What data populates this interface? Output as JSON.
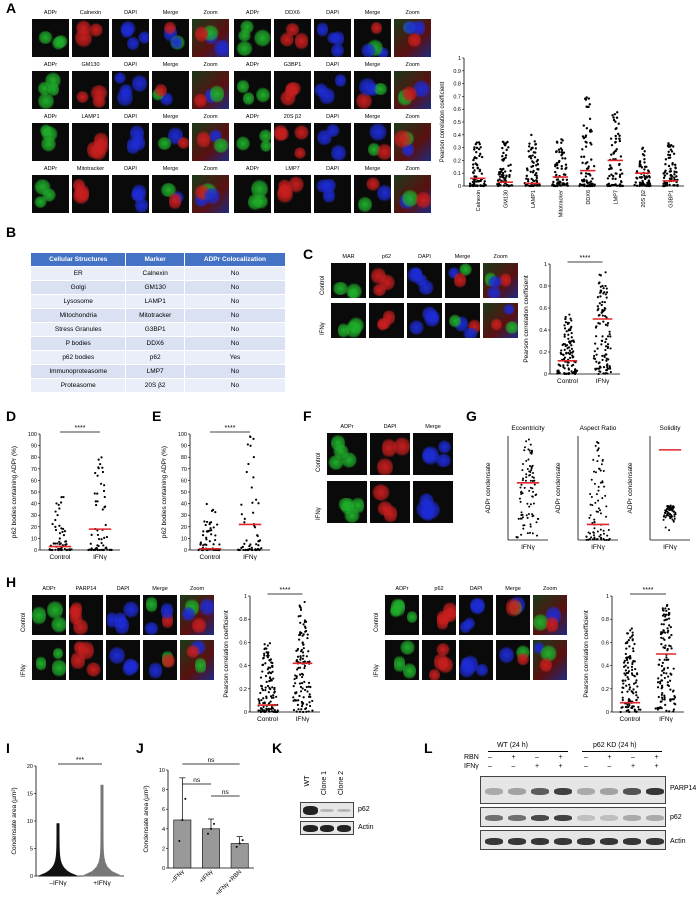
{
  "panels": {
    "A": "A",
    "B": "B",
    "C": "C",
    "D": "D",
    "E": "E",
    "F": "F",
    "G": "G",
    "H": "H",
    "I": "I",
    "J": "J",
    "K": "K",
    "L": "L"
  },
  "A": {
    "left_rows": [
      [
        "ADPr",
        "Calnexin",
        "DAPI",
        "Merge",
        "Zoom"
      ],
      [
        "ADPr",
        "GM130",
        "DAPI",
        "Merge",
        "Zoom"
      ],
      [
        "ADPr",
        "LAMP1",
        "DAPI",
        "Merge",
        "Zoom"
      ],
      [
        "ADPr",
        "Mitotracker",
        "DAPI",
        "Merge",
        "Zoom"
      ]
    ],
    "right_rows": [
      [
        "ADPr",
        "DDX6",
        "DAPI",
        "Merge",
        "Zoom"
      ],
      [
        "ADPr",
        "G3BP1",
        "DAPI",
        "Merge",
        "Zoom"
      ],
      [
        "ADPr",
        "20S β2",
        "DAPI",
        "Merge",
        "Zoom"
      ],
      [
        "ADPr",
        "LMP7",
        "DAPI",
        "Merge",
        "Zoom"
      ]
    ],
    "colors": {
      "green": "#1fae2a",
      "red": "#c81e1e",
      "blue": "#1d2bd6"
    }
  },
  "B": {
    "headers": [
      "Cellular Structures",
      "Marker",
      "ADPr Colocalization"
    ],
    "rows": [
      [
        "ER",
        "Calnexin",
        "No"
      ],
      [
        "Golgi",
        "GM130",
        "No"
      ],
      [
        "Lysosome",
        "LAMP1",
        "No"
      ],
      [
        "Mitochondria",
        "Mitotracker",
        "No"
      ],
      [
        "Stress Granules",
        "G3BP1",
        "No"
      ],
      [
        "P bodies",
        "DDX6",
        "No"
      ],
      [
        "p62 bodies",
        "p62",
        "Yes"
      ],
      [
        "Immunoproteasome",
        "LMP7",
        "No"
      ],
      [
        "Proteasome",
        "20S β2",
        "No"
      ]
    ]
  },
  "C": {
    "headers": [
      "MAR",
      "p62",
      "DAPI",
      "Merge",
      "Zoom"
    ],
    "rows": [
      "Control",
      "IFNγ"
    ]
  },
  "F": {
    "headers": [
      "ADPr",
      "DAPI",
      "Merge"
    ],
    "rows": [
      "Control",
      "IFNγ"
    ]
  },
  "H": {
    "left_headers": [
      "ADPr",
      "PARP14",
      "DAPI",
      "Merge",
      "Zoom"
    ],
    "right_headers": [
      "ADPr",
      "p62",
      "DAPI",
      "Merge",
      "Zoom"
    ],
    "rows": [
      "Control",
      "IFNγ"
    ]
  },
  "K": {
    "lanes": [
      "WT",
      "Clone 1",
      "Clone 2"
    ],
    "bands": [
      "p62",
      "Actin"
    ]
  },
  "L": {
    "groups": [
      "WT (24 h)",
      "p62 KD (24 h)"
    ],
    "row_labels": [
      "RBN",
      "IFNγ"
    ],
    "rbn": [
      "–",
      "+",
      "–",
      "+",
      "–",
      "+",
      "–",
      "+"
    ],
    "ifn": [
      "–",
      "–",
      "+",
      "+",
      "–",
      "–",
      "+",
      "+"
    ],
    "bands": [
      "PARP14",
      "p62",
      "Actin"
    ]
  },
  "chart_data": [
    {
      "id": "A",
      "type": "scatter",
      "ylabel": "Pearson correlation coefficient",
      "ylim": [
        0,
        1.0
      ],
      "yticks": [
        0,
        0.1,
        0.2,
        0.3,
        0.4,
        0.5,
        0.6,
        0.7,
        0.8,
        0.9,
        1.0
      ],
      "categories": [
        "Calnexin",
        "GM130",
        "LAMP1",
        "Mitotracker",
        "DDX6",
        "LMP7",
        "20S β2",
        "G3BP1"
      ],
      "medians": [
        0.06,
        0.03,
        0.02,
        0.07,
        0.12,
        0.2,
        0.1,
        0.04
      ],
      "spreads": [
        0.35,
        0.35,
        0.4,
        0.4,
        0.7,
        0.6,
        0.3,
        0.35
      ]
    },
    {
      "id": "C",
      "type": "scatter",
      "ylabel": "Pearson correlation coefficient",
      "ylim": [
        0,
        1.0
      ],
      "yticks": [
        0,
        0.2,
        0.4,
        0.6,
        0.8,
        1.0
      ],
      "categories": [
        "Control",
        "IFNγ"
      ],
      "medians": [
        0.12,
        0.5
      ],
      "spreads": [
        0.55,
        0.95
      ],
      "sig": "****"
    },
    {
      "id": "D",
      "type": "scatter",
      "ylabel": "p62 bodies containing ADPr (%)",
      "ylim": [
        0,
        100
      ],
      "yticks": [
        0,
        10,
        20,
        30,
        40,
        50,
        60,
        70,
        80,
        90,
        100
      ],
      "categories": [
        "Control",
        "IFNγ"
      ],
      "medians": [
        3,
        18
      ],
      "spreads": [
        50,
        80
      ],
      "sig": "****"
    },
    {
      "id": "E",
      "type": "scatter",
      "ylabel": "p62 bodies containing ADPr (%)",
      "ylim": [
        0,
        100
      ],
      "yticks": [
        0,
        10,
        20,
        30,
        40,
        50,
        60,
        70,
        80,
        90,
        100
      ],
      "categories": [
        "Control",
        "IFNγ"
      ],
      "medians": [
        1,
        22
      ],
      "spreads": [
        42,
        100
      ],
      "sig": "****"
    },
    {
      "id": "G1",
      "type": "scatter",
      "title": "Eccentricity",
      "ylabel": "ADPr condensate",
      "categories": [
        "IFNγ"
      ],
      "medians": [
        0.55
      ],
      "spreads": [
        0.98
      ]
    },
    {
      "id": "G2",
      "type": "scatter",
      "title": "Aspect Ratio",
      "ylabel": "ADPr condensate",
      "categories": [
        "IFNγ"
      ],
      "medians": [
        1.3
      ],
      "spreads": [
        2.9
      ]
    },
    {
      "id": "G3",
      "type": "scatter",
      "title": "Solidity",
      "ylabel": "ADPr condensate",
      "categories": [
        "IFNγ"
      ],
      "medians": [
        0.96
      ],
      "spreads": [
        0.8
      ]
    },
    {
      "id": "H1",
      "type": "scatter",
      "ylabel": "Pearson correlation coefficient",
      "ylim": [
        0,
        1.0
      ],
      "yticks": [
        0,
        0.2,
        0.4,
        0.6,
        0.8,
        1.0
      ],
      "categories": [
        "Control",
        "IFNγ"
      ],
      "medians": [
        0.06,
        0.42
      ],
      "spreads": [
        0.6,
        0.95
      ],
      "sig": "****"
    },
    {
      "id": "H2",
      "type": "scatter",
      "ylabel": "Pearson correlation coefficient",
      "ylim": [
        0,
        1.0
      ],
      "yticks": [
        0,
        0.2,
        0.4,
        0.6,
        0.8,
        1.0
      ],
      "categories": [
        "Control",
        "IFNγ"
      ],
      "medians": [
        0.08,
        0.5
      ],
      "spreads": [
        0.72,
        0.95
      ],
      "sig": "****"
    },
    {
      "id": "I",
      "type": "violin",
      "ylabel": "Condensate area (µm²)",
      "ylim": [
        0,
        20
      ],
      "yticks": [
        0,
        5,
        10,
        15,
        20
      ],
      "categories": [
        "–IFNγ",
        "+IFNγ"
      ],
      "max": [
        9.5,
        16.5
      ],
      "sig": "***"
    },
    {
      "id": "J",
      "type": "bar",
      "ylabel": "Condensate area (µm²)",
      "ylim": [
        0,
        10
      ],
      "yticks": [
        0,
        2,
        4,
        6,
        8,
        10
      ],
      "categories": [
        "–IFNγ",
        "+IFNγ",
        "+IFNγ +RBN"
      ],
      "values": [
        4.9,
        4.0,
        2.5
      ],
      "errors": [
        4.3,
        1.0,
        0.7
      ],
      "sig": [
        "ns",
        "ns",
        "ns"
      ]
    }
  ]
}
